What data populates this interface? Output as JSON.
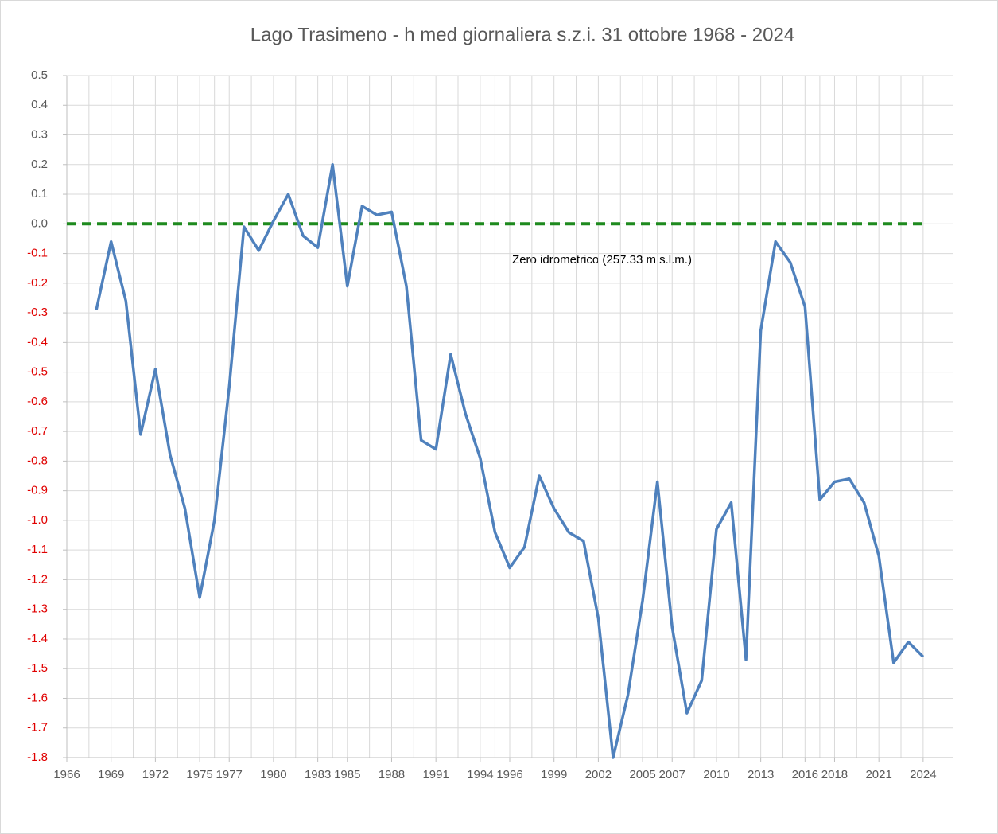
{
  "chart_data": {
    "type": "line",
    "title": "Lago Trasimeno - h med giornaliera s.z.i. 31 ottobre 1968 - 2024",
    "annotation": "Zero idrometrico (257.33 m s.l.m.)",
    "x": [
      1968,
      1969,
      1970,
      1971,
      1972,
      1973,
      1974,
      1975,
      1976,
      1977,
      1978,
      1979,
      1980,
      1981,
      1982,
      1983,
      1984,
      1985,
      1986,
      1987,
      1988,
      1989,
      1990,
      1991,
      1992,
      1993,
      1994,
      1995,
      1996,
      1997,
      1998,
      1999,
      2000,
      2001,
      2002,
      2003,
      2004,
      2005,
      2006,
      2007,
      2008,
      2009,
      2010,
      2011,
      2012,
      2013,
      2014,
      2015,
      2016,
      2017,
      2018,
      2019,
      2020,
      2021,
      2022,
      2023,
      2024
    ],
    "series": [
      {
        "color": "#4f81bd",
        "values": [
          -0.29,
          -0.06,
          -0.26,
          -0.71,
          -0.49,
          -0.78,
          -0.96,
          -1.26,
          -1.0,
          -0.55,
          -0.01,
          -0.09,
          0.01,
          0.1,
          -0.04,
          -0.08,
          0.2,
          -0.21,
          0.06,
          0.03,
          0.04,
          -0.21,
          -0.73,
          -0.76,
          -0.44,
          -0.64,
          -0.79,
          -1.04,
          -1.16,
          -1.09,
          -0.85,
          -0.96,
          -1.04,
          -1.07,
          -1.33,
          -1.8,
          -1.59,
          -1.27,
          -0.87,
          -1.36,
          -1.65,
          -1.54,
          -1.03,
          -0.94,
          -1.47,
          -0.36,
          -0.06,
          -0.13,
          -0.28,
          -0.93,
          -0.87,
          -0.86,
          -0.94,
          -1.12,
          -1.48,
          -1.41,
          -1.46
        ]
      }
    ],
    "reference_line": {
      "value": 0,
      "color": "#1e8a1e",
      "dashed": true
    },
    "xlim": [
      1966,
      2026
    ],
    "xticks": [
      1966,
      1969,
      1972,
      1975,
      1977,
      1980,
      1983,
      1985,
      1988,
      1991,
      1994,
      1996,
      1999,
      2002,
      2005,
      2007,
      2010,
      2013,
      2016,
      2018,
      2021,
      2024
    ],
    "ylim": [
      -1.8,
      0.5
    ],
    "yticks": [
      0.5,
      0.4,
      0.3,
      0.2,
      0.1,
      {
        "value": 0,
        "label": "0.0"
      },
      -0.1,
      -0.2,
      -0.3,
      -0.4,
      -0.5,
      -0.6,
      -0.7,
      -0.8,
      -0.9,
      {
        "value": -1,
        "label": "-1.0"
      },
      -1.1,
      -1.2,
      -1.3,
      -1.4,
      -1.5,
      -1.6,
      -1.7,
      -1.8
    ],
    "negative_tick_color": "#e00000",
    "grid": true
  }
}
